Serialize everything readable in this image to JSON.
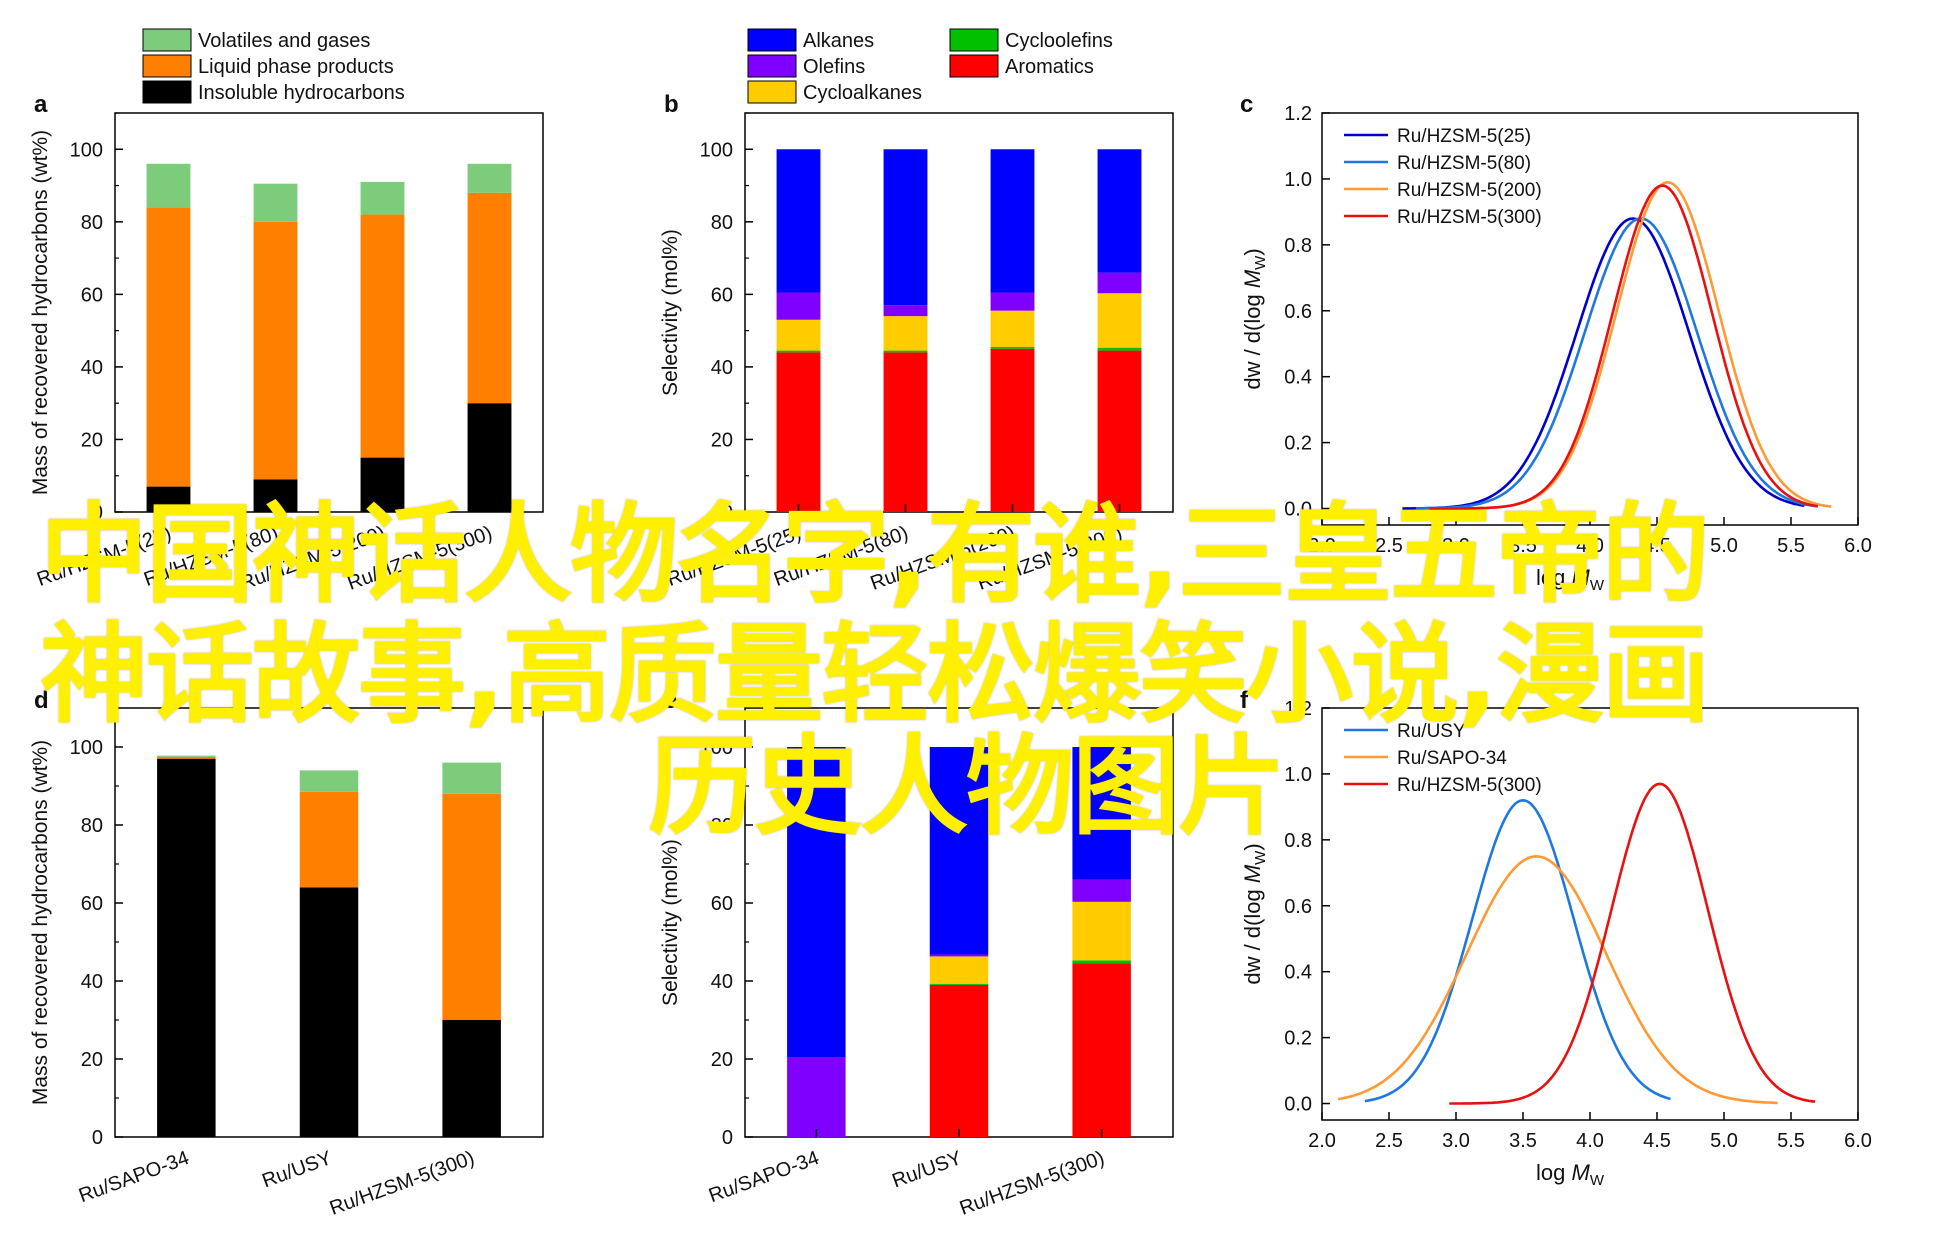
{
  "legends": {
    "top_left": [
      "Volatiles and gases",
      "Liquid phase products",
      "Insoluble hydrocarbons"
    ],
    "top_middle": [
      "Alkanes",
      "Cycloolefins",
      "Olefins",
      "Aromatics",
      "Cycloalkanes"
    ]
  },
  "colors": {
    "volatiles": "#7ccc7c",
    "liquid": "#ff8000",
    "insoluble": "#000000",
    "alkanes": "#0000ff",
    "olefins": "#8000ff",
    "cycloalkanes": "#ffcc00",
    "cycloolefins": "#00c000",
    "aromatics": "#ff0000",
    "ru_hzsm5_25": "#0000cc",
    "ru_hzsm5_80": "#1f77e0",
    "ru_hzsm5_200": "#ff9933",
    "ru_hzsm5_300": "#e81010",
    "ru_usy": "#1f77e0",
    "ru_sapo34": "#ff9933",
    "overlay_text": "#ffef00"
  },
  "chart_data": [
    {
      "panel": "a",
      "type": "bar",
      "stacked": true,
      "categories": [
        "Ru/HZSM-5(25)",
        "Ru/HZSM-5(80)",
        "Ru/HZSM-5(200)",
        "Ru/HZSM-5(300)"
      ],
      "ylabel": "Mass of recovered hydrocarbons (wt%)",
      "ylim": [
        0,
        110
      ],
      "yticks": [
        0,
        20,
        40,
        60,
        80,
        100
      ],
      "series": [
        {
          "name": "Insoluble hydrocarbons",
          "values": [
            7,
            9,
            15,
            30
          ]
        },
        {
          "name": "Liquid phase products",
          "values": [
            77,
            71,
            67,
            58
          ]
        },
        {
          "name": "Volatiles and gases",
          "values": [
            12,
            10.5,
            9,
            8
          ]
        }
      ]
    },
    {
      "panel": "b",
      "type": "bar",
      "stacked": true,
      "categories": [
        "Ru/HZSM-5(25)",
        "Ru/HZSM-5(80)",
        "Ru/HZSM-5(200)",
        "Ru/HZSM-5(300)"
      ],
      "ylabel": "Selectivity (mol%)",
      "ylim": [
        0,
        110
      ],
      "yticks": [
        0,
        20,
        40,
        60,
        80,
        100
      ],
      "series": [
        {
          "name": "Aromatics",
          "values": [
            44,
            44,
            45,
            44.5
          ]
        },
        {
          "name": "Cycloolefins",
          "values": [
            0.5,
            0.5,
            0.5,
            0.8
          ]
        },
        {
          "name": "Cycloalkanes",
          "values": [
            8.5,
            9.5,
            10,
            15
          ]
        },
        {
          "name": "Olefins",
          "values": [
            7.5,
            3,
            5,
            5.7
          ]
        },
        {
          "name": "Alkanes",
          "values": [
            39.5,
            43,
            39.5,
            34
          ]
        }
      ]
    },
    {
      "panel": "c",
      "type": "line",
      "xlabel": "log Mw",
      "ylabel": "dw / d(log Mw)",
      "xlim": [
        2.0,
        6.0
      ],
      "ylim": [
        -0.05,
        1.2
      ],
      "xticks": [
        2.0,
        2.5,
        3.0,
        3.5,
        4.0,
        4.5,
        5.0,
        5.5,
        6.0
      ],
      "yticks": [
        0.0,
        0.2,
        0.4,
        0.6,
        0.8,
        1.0,
        1.2
      ],
      "series": [
        {
          "name": "Ru/HZSM-5(25)",
          "peak_x": 4.32,
          "peak_y": 0.88,
          "sigma": 0.42,
          "x_start": 2.6,
          "x_end": 5.6
        },
        {
          "name": "Ru/HZSM-5(80)",
          "peak_x": 4.38,
          "peak_y": 0.88,
          "sigma": 0.42,
          "x_start": 2.7,
          "x_end": 5.7
        },
        {
          "name": "Ru/HZSM-5(200)",
          "peak_x": 4.58,
          "peak_y": 0.99,
          "sigma": 0.38,
          "x_start": 2.8,
          "x_end": 5.8
        },
        {
          "name": "Ru/HZSM-5(300)",
          "peak_x": 4.54,
          "peak_y": 0.98,
          "sigma": 0.37,
          "x_start": 2.8,
          "x_end": 5.7
        }
      ]
    },
    {
      "panel": "d",
      "type": "bar",
      "stacked": true,
      "categories": [
        "Ru/SAPO-34",
        "Ru/USY",
        "Ru/HZSM-5(300)"
      ],
      "ylabel": "Mass of recovered hydrocarbons (wt%)",
      "ylim": [
        0,
        110
      ],
      "yticks": [
        0,
        20,
        40,
        60,
        80,
        100
      ],
      "series": [
        {
          "name": "Insoluble hydrocarbons",
          "values": [
            97,
            64,
            30
          ]
        },
        {
          "name": "Liquid phase products",
          "values": [
            0.5,
            24.5,
            58
          ]
        },
        {
          "name": "Volatiles and gases",
          "values": [
            0.3,
            5.5,
            8
          ]
        }
      ]
    },
    {
      "panel": "e",
      "type": "bar",
      "stacked": true,
      "categories": [
        "Ru/SAPO-34",
        "Ru/USY",
        "Ru/HZSM-5(300)"
      ],
      "ylabel": "Selectivity (mol%)",
      "ylim": [
        0,
        110
      ],
      "yticks": [
        0,
        20,
        40,
        60,
        80,
        100
      ],
      "series": [
        {
          "name": "Aromatics",
          "values": [
            0,
            39,
            44.5
          ]
        },
        {
          "name": "Cycloolefins",
          "values": [
            0,
            0.3,
            0.8
          ]
        },
        {
          "name": "Cycloalkanes",
          "values": [
            0,
            7,
            15
          ]
        },
        {
          "name": "Olefins",
          "values": [
            20.5,
            0.5,
            5.7
          ]
        },
        {
          "name": "Alkanes",
          "values": [
            79.5,
            53.2,
            34
          ]
        }
      ]
    },
    {
      "panel": "f",
      "type": "line",
      "xlabel": "log Mw",
      "ylabel": "dw / d(log Mw)",
      "xlim": [
        2.0,
        6.0
      ],
      "ylim": [
        -0.05,
        1.2
      ],
      "xticks": [
        2.0,
        2.5,
        3.0,
        3.5,
        4.0,
        4.5,
        5.0,
        5.5,
        6.0
      ],
      "yticks": [
        0.0,
        0.2,
        0.4,
        0.6,
        0.8,
        1.0,
        1.2
      ],
      "series": [
        {
          "name": "Ru/USY",
          "peak_x": 3.5,
          "peak_y": 0.92,
          "sigma": 0.38,
          "x_start": 2.32,
          "x_end": 4.6
        },
        {
          "name": "Ru/SAPO-34",
          "peak_x": 3.6,
          "peak_y": 0.75,
          "sigma": 0.52,
          "x_start": 2.12,
          "x_end": 5.4
        },
        {
          "name": "Ru/HZSM-5(300)",
          "peak_x": 4.52,
          "peak_y": 0.97,
          "sigma": 0.36,
          "x_start": 2.95,
          "x_end": 5.68
        }
      ]
    }
  ],
  "overlay": {
    "line1": "中国神话人物名字,有谁,三皇五帝的",
    "line2": "神话故事,高质量轻松爆笑小说,漫画",
    "line3": "历史人物图片"
  }
}
